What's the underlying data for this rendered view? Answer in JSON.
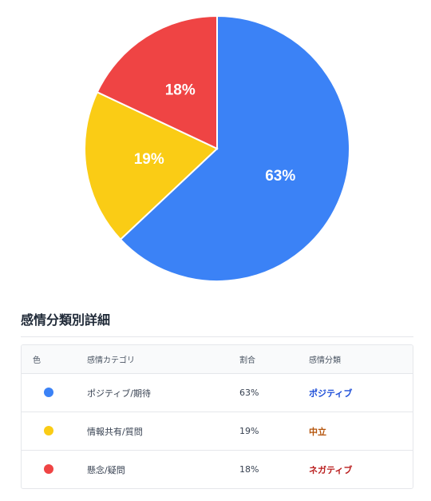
{
  "chart_data": {
    "type": "pie",
    "slices": [
      {
        "label": "63%",
        "value": 63,
        "color": "#3b82f6"
      },
      {
        "label": "19%",
        "value": 19,
        "color": "#facc15"
      },
      {
        "label": "18%",
        "value": 18,
        "color": "#ef4444"
      }
    ]
  },
  "section": {
    "title": "感情分類別詳細"
  },
  "table": {
    "headers": [
      "色",
      "感情カテゴリ",
      "割合",
      "感情分類"
    ],
    "rows": [
      {
        "color": "#3b82f6",
        "category": "ポジティブ/期待",
        "ratio": "63%",
        "sentiment": "ポジティブ",
        "sentiment_color": "#1d4ed8"
      },
      {
        "color": "#facc15",
        "category": "情報共有/質問",
        "ratio": "19%",
        "sentiment": "中立",
        "sentiment_color": "#b45309"
      },
      {
        "color": "#ef4444",
        "category": "懸念/疑問",
        "ratio": "18%",
        "sentiment": "ネガティブ",
        "sentiment_color": "#b91c1c"
      }
    ]
  }
}
